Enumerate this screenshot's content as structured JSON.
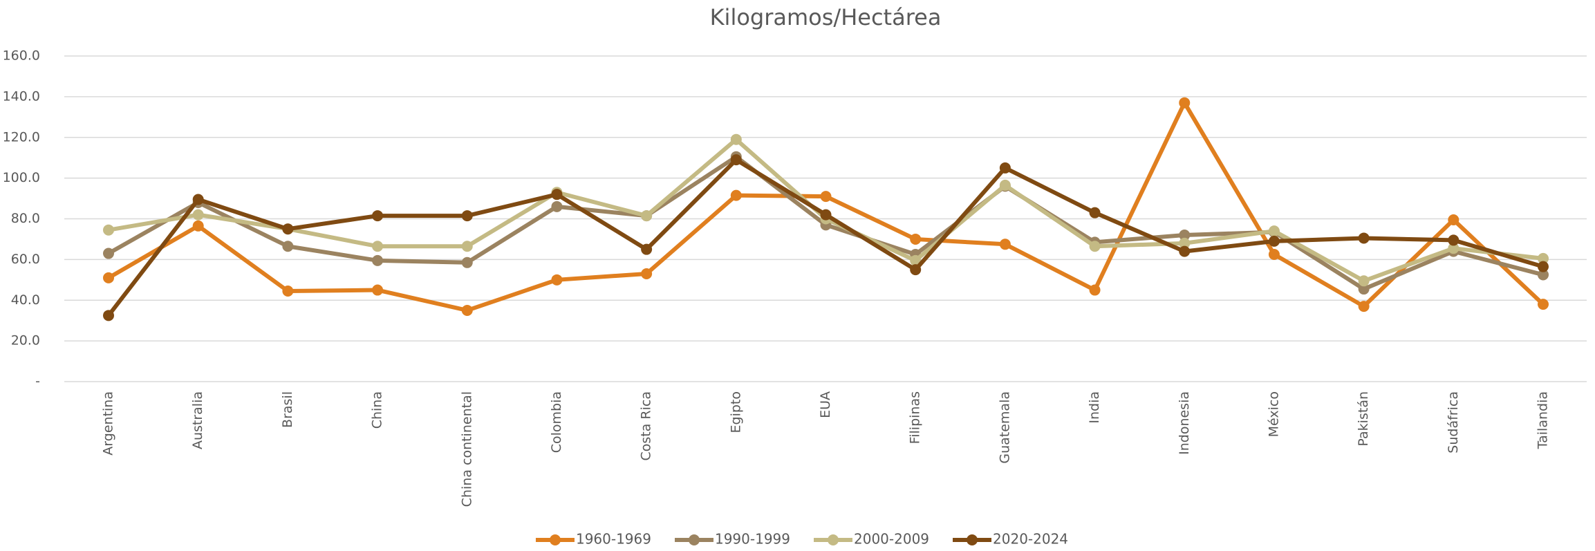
{
  "chart_data": {
    "type": "line",
    "title": "Kilogramos/Hectárea",
    "categories": [
      "Argentina",
      "Australia",
      "Brasil",
      "China",
      "China continental",
      "Colombia",
      "Costa Rica",
      "Egipto",
      "EUA",
      "Filipinas",
      "Guatemala",
      "India",
      "Indonesia",
      "México",
      "Pakistán",
      "Sudáfrica",
      "Tailandia"
    ],
    "series": [
      {
        "name": "1960-1969",
        "color": "#e07f1f",
        "values": [
          51,
          76.5,
          44.5,
          45,
          35,
          50,
          53,
          91.5,
          91,
          70,
          67.5,
          45,
          137,
          62.5,
          37,
          79.5,
          38
        ]
      },
      {
        "name": "1990-1999",
        "color": "#9b8360",
        "values": [
          63,
          88,
          66.5,
          59.5,
          58.5,
          86,
          81.5,
          110.5,
          77,
          62.5,
          96,
          68.5,
          72,
          73.5,
          45.5,
          64,
          52.5
        ]
      },
      {
        "name": "2000-2009",
        "color": "#c4ba84",
        "values": [
          74.5,
          82,
          75,
          66.5,
          66.5,
          93,
          81.5,
          119,
          80,
          59.5,
          96.5,
          66.5,
          68,
          74,
          49.5,
          65.5,
          60.5
        ]
      },
      {
        "name": "2020-2024",
        "color": "#7f4a12",
        "values": [
          32.5,
          89.5,
          75,
          81.5,
          81.5,
          92,
          65,
          109,
          82,
          55,
          105,
          83,
          64,
          69,
          70.5,
          69.5,
          56.5
        ]
      }
    ],
    "ylim": [
      0,
      160
    ],
    "yticks": [
      {
        "value": 0,
        "label": "-"
      },
      {
        "value": 20,
        "label": "20.0"
      },
      {
        "value": 40,
        "label": "40.0"
      },
      {
        "value": 60,
        "label": "60.0"
      },
      {
        "value": 80,
        "label": "80.0"
      },
      {
        "value": 100,
        "label": "100.0"
      },
      {
        "value": 120,
        "label": "120.0"
      },
      {
        "value": 140,
        "label": "140.0"
      },
      {
        "value": 160,
        "label": "160.0"
      }
    ],
    "grid": true,
    "legend": "bottom"
  }
}
